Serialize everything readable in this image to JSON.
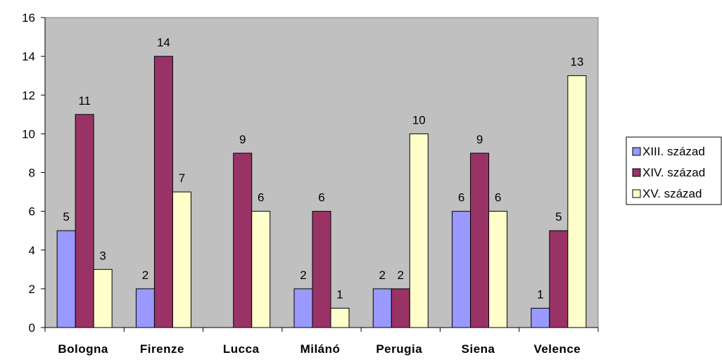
{
  "chart_data": {
    "type": "bar",
    "categories": [
      "Bologna",
      "Firenze",
      "Lucca",
      "Milánó",
      "Perugia",
      "Siena",
      "Velence"
    ],
    "series": [
      {
        "name": "XIII. század",
        "color": "#9999ff",
        "values": [
          5,
          2,
          null,
          2,
          2,
          6,
          1
        ]
      },
      {
        "name": "XIV. század",
        "color": "#993366",
        "values": [
          11,
          14,
          9,
          6,
          2,
          9,
          5
        ]
      },
      {
        "name": "XV. század",
        "color": "#ffffcc",
        "values": [
          3,
          7,
          6,
          1,
          10,
          6,
          13
        ]
      }
    ],
    "ylim": [
      0,
      16
    ],
    "yticks": [
      0,
      2,
      4,
      6,
      8,
      10,
      12,
      14,
      16
    ],
    "title": "",
    "xlabel": "",
    "ylabel": "",
    "grid": false,
    "plot_background": "#c0c0c0",
    "legend_position": "right",
    "data_labels": true
  }
}
